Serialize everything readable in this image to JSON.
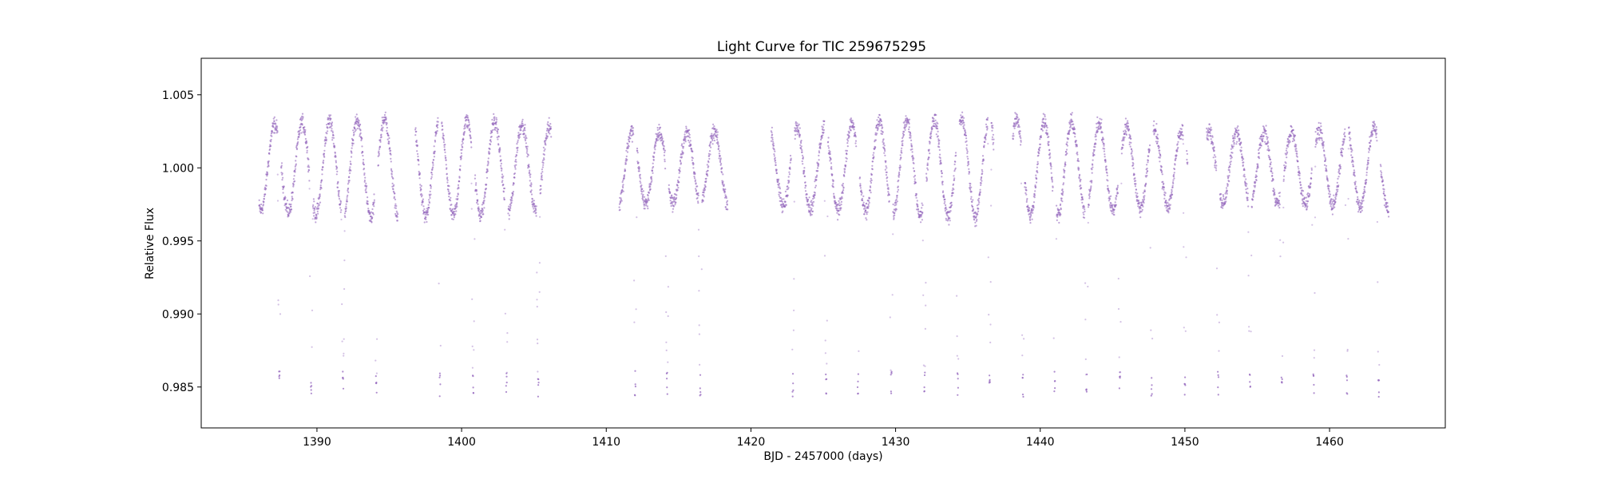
{
  "chart_data": {
    "type": "scatter",
    "title": "Light Curve for TIC 259675295",
    "xlabel": "BJD - 2457000 (days)",
    "ylabel": "Relative Flux",
    "xlim": [
      1382,
      1468
    ],
    "ylim": [
      0.9822,
      1.0075
    ],
    "x_ticks": [
      1390,
      1400,
      1410,
      1420,
      1430,
      1440,
      1450,
      1460
    ],
    "y_ticks": [
      0.985,
      0.99,
      0.995,
      1.0,
      1.005
    ],
    "y_tick_labels": [
      "0.985",
      "0.990",
      "0.995",
      "1.000",
      "1.005"
    ],
    "grid": false,
    "legend": "none",
    "marker_color": "#9467bd",
    "series": [
      {
        "segments": [
          [
            1386.0,
            1395.6
          ],
          [
            1396.8,
            1406.2
          ],
          [
            1410.9,
            1418.4
          ],
          [
            1421.4,
            1436.8
          ],
          [
            1438.1,
            1450.2
          ],
          [
            1451.5,
            1464.1
          ]
        ],
        "oscillation_period": 1.9,
        "oscillation_amplitude": 0.0032,
        "baseline": 1.0,
        "eclipse_times": [
          1387.4,
          1389.6,
          1391.8,
          1394.1,
          1398.5,
          1400.8,
          1403.1,
          1405.3,
          1412.0,
          1414.2,
          1416.5,
          1422.9,
          1425.2,
          1427.4,
          1429.7,
          1432.0,
          1434.3,
          1436.5,
          1438.8,
          1441.0,
          1443.2,
          1445.5,
          1447.7,
          1450.0,
          1452.3,
          1454.5,
          1456.7,
          1458.9,
          1461.2,
          1463.4
        ],
        "eclipse_depth_flux": 0.9852
      }
    ]
  }
}
